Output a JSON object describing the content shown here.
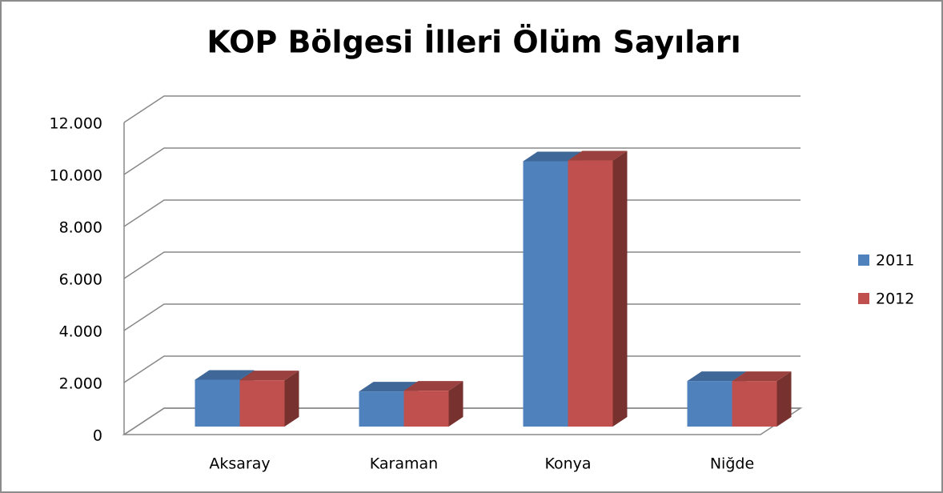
{
  "chart_data": {
    "type": "bar3d",
    "title": "KOP Bölgesi İlleri Ölüm Sayıları",
    "categories": [
      "Aksaray",
      "Karaman",
      "Konya",
      "Niğde"
    ],
    "series": [
      {
        "name": "2011",
        "color": "#4f81bd",
        "values": [
          1800,
          1350,
          10200,
          1750
        ]
      },
      {
        "name": "2012",
        "color": "#c0504d",
        "values": [
          1780,
          1380,
          10230,
          1750
        ]
      }
    ],
    "ylim": [
      0,
      12000
    ],
    "yticks": [
      0,
      {
        "value": 2000,
        "label": "2.000"
      },
      {
        "value": 4000,
        "label": "4.000"
      },
      {
        "value": 6000,
        "label": "6.000"
      },
      {
        "value": 8000,
        "label": "8.000"
      },
      {
        "value": 10000,
        "label": "10.000"
      },
      {
        "value": 12000,
        "label": "12.000"
      }
    ],
    "grid": true,
    "legend": "right"
  }
}
